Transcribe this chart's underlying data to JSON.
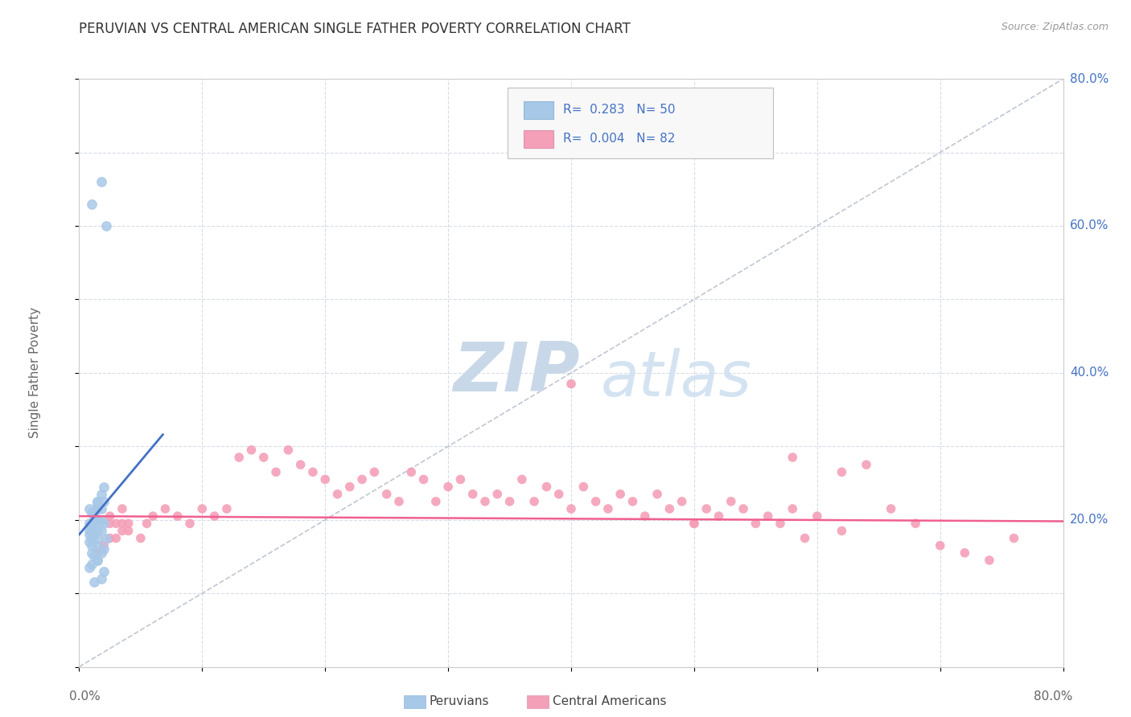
{
  "title": "PERUVIAN VS CENTRAL AMERICAN SINGLE FATHER POVERTY CORRELATION CHART",
  "source": "Source: ZipAtlas.com",
  "ylabel": "Single Father Poverty",
  "watermark_zip": "ZIP",
  "watermark_atlas": "atlas",
  "peruvian_color": "#a8c8e8",
  "central_color": "#f4a0b8",
  "peruvian_line_color": "#4472c4",
  "central_line_color": "#f06090",
  "diagonal_color": "#b0b8c8",
  "right_label_color": "#4472c4",
  "grid_color": "#d8dce8",
  "xlim": [
    0.0,
    0.8
  ],
  "ylim": [
    0.0,
    0.8
  ],
  "peru_x": [
    0.01,
    0.018,
    0.022,
    0.008,
    0.012,
    0.015,
    0.01,
    0.008,
    0.012,
    0.015,
    0.01,
    0.012,
    0.008,
    0.015,
    0.01,
    0.012,
    0.018,
    0.02,
    0.015,
    0.01,
    0.012,
    0.008,
    0.015,
    0.01,
    0.018,
    0.012,
    0.02,
    0.015,
    0.008,
    0.012,
    0.015,
    0.01,
    0.018,
    0.012,
    0.015,
    0.02,
    0.018,
    0.022,
    0.015,
    0.01,
    0.02,
    0.012,
    0.015,
    0.018,
    0.01,
    0.015,
    0.008,
    0.02,
    0.018,
    0.012
  ],
  "peru_y": [
    0.63,
    0.66,
    0.6,
    0.215,
    0.195,
    0.225,
    0.21,
    0.185,
    0.2,
    0.215,
    0.195,
    0.205,
    0.195,
    0.22,
    0.19,
    0.21,
    0.235,
    0.245,
    0.225,
    0.175,
    0.195,
    0.18,
    0.2,
    0.185,
    0.215,
    0.195,
    0.225,
    0.215,
    0.17,
    0.18,
    0.175,
    0.165,
    0.185,
    0.195,
    0.185,
    0.195,
    0.2,
    0.175,
    0.165,
    0.155,
    0.16,
    0.15,
    0.145,
    0.155,
    0.14,
    0.145,
    0.135,
    0.13,
    0.12,
    0.115
  ],
  "ca_x": [
    0.015,
    0.025,
    0.03,
    0.035,
    0.04,
    0.025,
    0.02,
    0.03,
    0.035,
    0.015,
    0.025,
    0.04,
    0.035,
    0.05,
    0.055,
    0.06,
    0.07,
    0.08,
    0.09,
    0.1,
    0.11,
    0.12,
    0.13,
    0.14,
    0.15,
    0.16,
    0.17,
    0.18,
    0.19,
    0.2,
    0.21,
    0.22,
    0.23,
    0.24,
    0.25,
    0.26,
    0.27,
    0.28,
    0.29,
    0.3,
    0.31,
    0.32,
    0.33,
    0.34,
    0.35,
    0.36,
    0.37,
    0.38,
    0.39,
    0.4,
    0.41,
    0.42,
    0.43,
    0.44,
    0.45,
    0.46,
    0.47,
    0.48,
    0.49,
    0.5,
    0.51,
    0.52,
    0.53,
    0.54,
    0.55,
    0.56,
    0.57,
    0.58,
    0.59,
    0.6,
    0.62,
    0.64,
    0.66,
    0.68,
    0.7,
    0.72,
    0.74,
    0.76,
    0.62,
    0.58,
    0.5,
    0.4
  ],
  "ca_y": [
    0.215,
    0.205,
    0.195,
    0.215,
    0.195,
    0.175,
    0.165,
    0.175,
    0.185,
    0.155,
    0.195,
    0.185,
    0.195,
    0.175,
    0.195,
    0.205,
    0.215,
    0.205,
    0.195,
    0.215,
    0.205,
    0.215,
    0.285,
    0.295,
    0.285,
    0.265,
    0.295,
    0.275,
    0.265,
    0.255,
    0.235,
    0.245,
    0.255,
    0.265,
    0.235,
    0.225,
    0.265,
    0.255,
    0.225,
    0.245,
    0.255,
    0.235,
    0.225,
    0.235,
    0.225,
    0.255,
    0.225,
    0.245,
    0.235,
    0.215,
    0.245,
    0.225,
    0.215,
    0.235,
    0.225,
    0.205,
    0.235,
    0.215,
    0.225,
    0.195,
    0.215,
    0.205,
    0.225,
    0.215,
    0.195,
    0.205,
    0.195,
    0.215,
    0.175,
    0.205,
    0.185,
    0.275,
    0.215,
    0.195,
    0.165,
    0.155,
    0.145,
    0.175,
    0.265,
    0.285,
    0.195,
    0.385
  ]
}
